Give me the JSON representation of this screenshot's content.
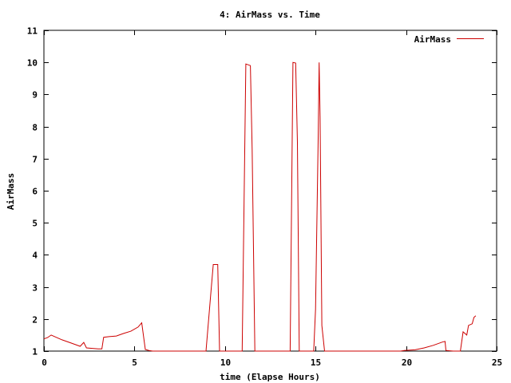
{
  "chart_data": {
    "type": "line",
    "title": "4: AirMass vs. Time",
    "xlabel": "time (Elapse Hours)",
    "ylabel": "AirMass",
    "xlim": [
      0,
      25
    ],
    "ylim": [
      1,
      11
    ],
    "xticks": [
      0,
      5,
      10,
      15,
      20,
      25
    ],
    "yticks": [
      1,
      2,
      3,
      4,
      5,
      6,
      7,
      8,
      9,
      10,
      11
    ],
    "grid": false,
    "legend_position": "top-right",
    "series_color": "#cc0000",
    "series": [
      {
        "name": "AirMass",
        "points": [
          [
            0.0,
            1.38
          ],
          [
            0.2,
            1.42
          ],
          [
            0.4,
            1.5
          ],
          [
            0.6,
            1.45
          ],
          [
            1.0,
            1.35
          ],
          [
            1.5,
            1.25
          ],
          [
            2.0,
            1.15
          ],
          [
            2.2,
            1.27
          ],
          [
            2.35,
            1.1
          ],
          [
            3.0,
            1.07
          ],
          [
            3.2,
            1.07
          ],
          [
            3.3,
            1.43
          ],
          [
            3.6,
            1.45
          ],
          [
            4.0,
            1.47
          ],
          [
            4.4,
            1.55
          ],
          [
            4.8,
            1.62
          ],
          [
            5.2,
            1.75
          ],
          [
            5.4,
            1.88
          ],
          [
            5.6,
            1.05
          ],
          [
            5.8,
            1.02
          ],
          [
            6.0,
            1.0
          ],
          [
            8.95,
            1.0
          ],
          [
            9.2,
            2.7
          ],
          [
            9.35,
            3.7
          ],
          [
            9.6,
            3.7
          ],
          [
            9.7,
            1.0
          ],
          [
            10.95,
            1.0
          ],
          [
            11.15,
            9.95
          ],
          [
            11.4,
            9.9
          ],
          [
            11.5,
            7.3
          ],
          [
            11.65,
            1.0
          ],
          [
            13.6,
            1.0
          ],
          [
            13.75,
            10.0
          ],
          [
            13.9,
            9.98
          ],
          [
            14.0,
            7.5
          ],
          [
            14.1,
            1.0
          ],
          [
            14.9,
            1.0
          ],
          [
            15.0,
            2.3
          ],
          [
            15.15,
            7.8
          ],
          [
            15.2,
            10.0
          ],
          [
            15.25,
            8.3
          ],
          [
            15.35,
            1.8
          ],
          [
            15.5,
            1.0
          ],
          [
            19.7,
            1.0
          ],
          [
            19.9,
            1.02
          ],
          [
            20.5,
            1.04
          ],
          [
            21.0,
            1.1
          ],
          [
            21.5,
            1.18
          ],
          [
            22.0,
            1.28
          ],
          [
            22.15,
            1.3
          ],
          [
            22.2,
            1.02
          ],
          [
            22.6,
            1.0
          ],
          [
            23.0,
            1.0
          ],
          [
            23.15,
            1.6
          ],
          [
            23.35,
            1.5
          ],
          [
            23.45,
            1.8
          ],
          [
            23.65,
            1.85
          ],
          [
            23.75,
            2.05
          ],
          [
            23.85,
            2.1
          ]
        ]
      }
    ]
  }
}
